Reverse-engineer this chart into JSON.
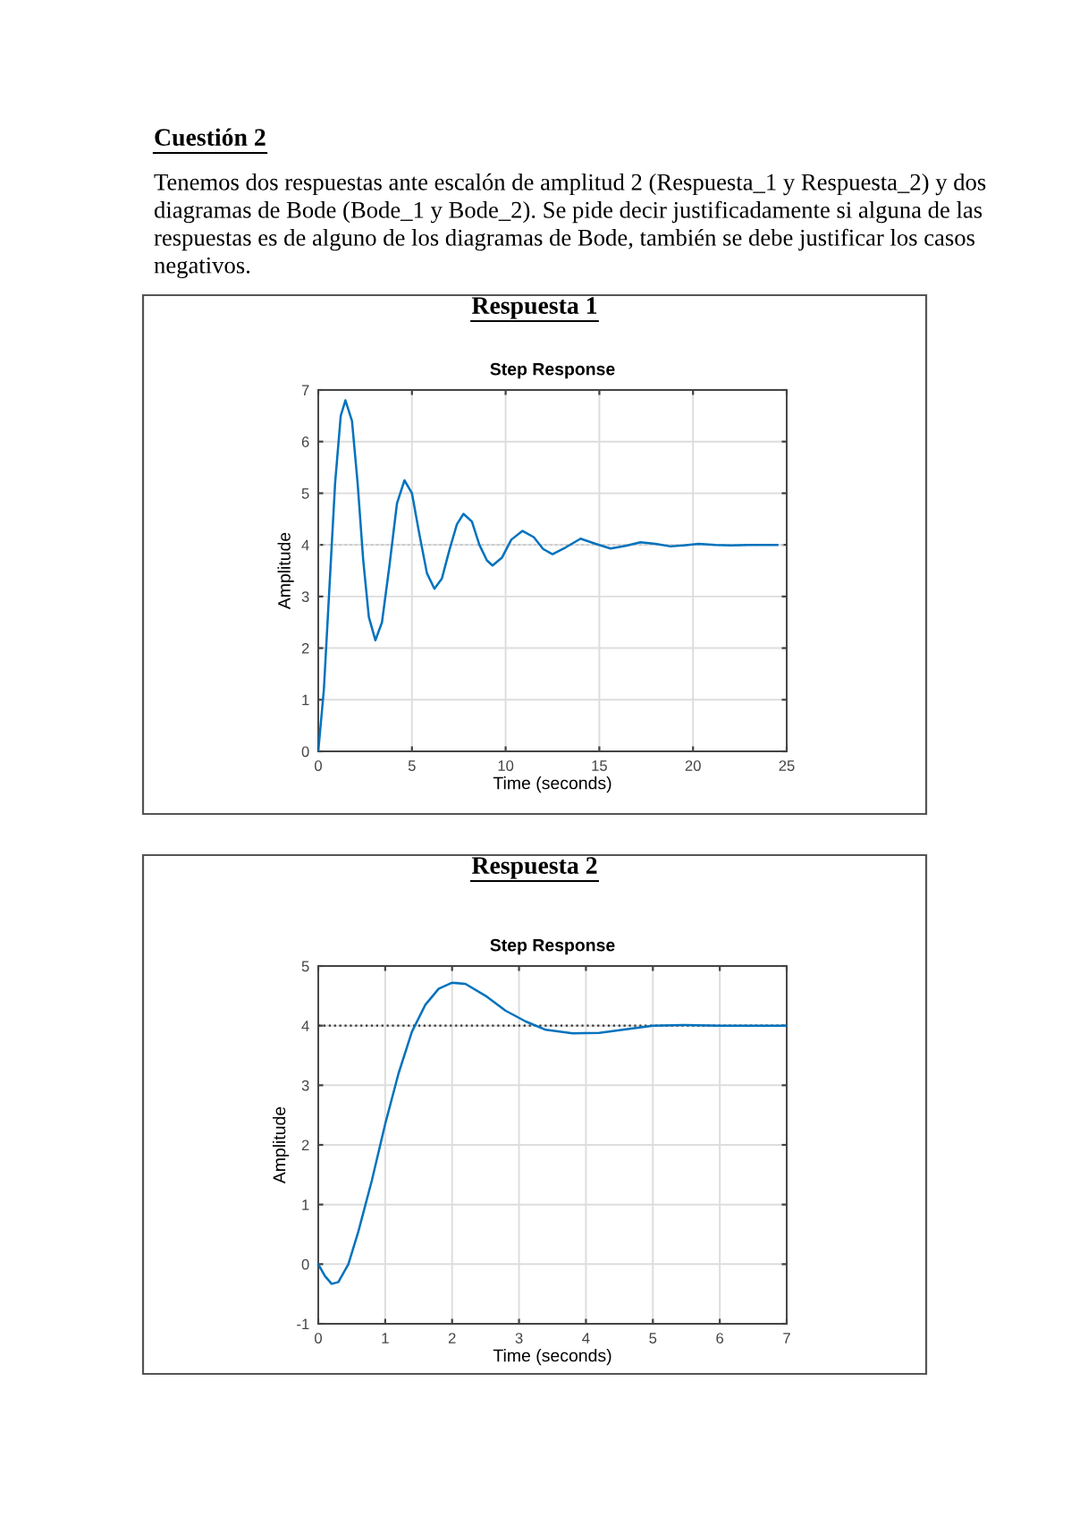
{
  "chart_data": [
    {
      "type": "line",
      "title": "Respuesta 1",
      "subtitle": "Step Response",
      "xlabel": "Time (seconds)",
      "ylabel": "Amplitude",
      "annotations": [
        "Cuestión 2",
        "Tenemos dos respuestas ante escalón de amplitud 2 (Respuesta_1 y Respuesta_2) y dos",
        "diagramas de Bode (Bode_1 y Bode_2). Se pide decir justificadamente si alguna de las",
        "respuestas es de alguno de los diagramas de Bode, también se debe justificar los casos",
        "negativos."
      ],
      "series": [
        {
          "color": "#0072bd",
          "x": [
            0,
            0.3,
            0.6,
            0.9,
            1.2,
            1.45,
            1.8,
            2.1,
            2.4,
            2.7,
            3.05,
            3.4,
            3.8,
            4.2,
            4.6,
            5.0,
            5.4,
            5.8,
            6.2,
            6.6,
            7.0,
            7.4,
            7.75,
            8.2,
            8.6,
            9.0,
            9.3,
            9.8,
            10.3,
            10.9,
            11.5,
            12.0,
            12.5,
            13.2,
            14.0,
            14.8,
            15.6,
            16.4,
            17.2,
            18.0,
            18.8,
            19.5,
            20.3,
            21.2,
            22.0,
            23.0,
            24.5
          ],
          "values": [
            0,
            1.2,
            3.2,
            5.2,
            6.5,
            6.8,
            6.4,
            5.2,
            3.7,
            2.6,
            2.15,
            2.5,
            3.6,
            4.8,
            5.25,
            5.0,
            4.2,
            3.45,
            3.15,
            3.35,
            3.9,
            4.4,
            4.6,
            4.45,
            4.0,
            3.7,
            3.6,
            3.75,
            4.1,
            4.27,
            4.15,
            3.92,
            3.82,
            3.95,
            4.12,
            4.02,
            3.93,
            3.98,
            4.05,
            4.02,
            3.97,
            3.99,
            4.02,
            4.0,
            3.99,
            4.0,
            4.0
          ]
        }
      ],
      "xlim": [
        0,
        25
      ],
      "xticks": [
        0,
        5,
        10,
        15,
        20,
        25
      ],
      "ylim": [
        0,
        7
      ],
      "yticks": [
        0,
        1,
        2,
        3,
        4,
        5,
        6,
        7
      ],
      "ref_lines": [
        {
          "axis": "y",
          "value": 4,
          "color": "#c8c8c8",
          "line_style": "dotted"
        }
      ],
      "grid": true,
      "line_style": "solid"
    },
    {
      "type": "line",
      "title": "Respuesta 2",
      "subtitle": "Step Response",
      "xlabel": "Time (seconds)",
      "ylabel": "Amplitude",
      "series": [
        {
          "color": "#0072bd",
          "x": [
            0,
            0.1,
            0.2,
            0.3,
            0.45,
            0.6,
            0.8,
            1.0,
            1.2,
            1.4,
            1.6,
            1.8,
            2.0,
            2.2,
            2.5,
            2.8,
            3.1,
            3.4,
            3.8,
            4.2,
            4.6,
            5.0,
            5.5,
            6.0,
            7.0
          ],
          "values": [
            0,
            -0.2,
            -0.33,
            -0.3,
            0,
            0.55,
            1.4,
            2.35,
            3.2,
            3.9,
            4.35,
            4.62,
            4.72,
            4.7,
            4.5,
            4.25,
            4.07,
            3.93,
            3.87,
            3.88,
            3.94,
            4.0,
            4.01,
            4.0,
            4.0
          ]
        }
      ],
      "xlim": [
        0,
        7
      ],
      "xticks": [
        0,
        1,
        2,
        3,
        4,
        5,
        6,
        7
      ],
      "ylim": [
        -1,
        5
      ],
      "yticks": [
        -1,
        0,
        1,
        2,
        3,
        4,
        5
      ],
      "ref_lines": [
        {
          "axis": "y",
          "value": 4,
          "color": "#333333",
          "line_style": "dotted"
        }
      ],
      "grid": true,
      "line_style": "solid"
    }
  ]
}
